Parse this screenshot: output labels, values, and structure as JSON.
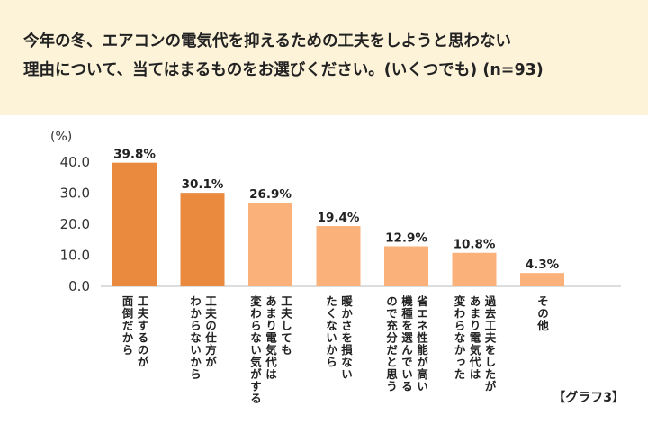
{
  "header": {
    "title_lines": [
      "今年の冬、エアコンの電気代を抑えるための工夫をしようと思わない",
      "理由について、当てはまるものをお選びください。(いくつでも) (n=93)"
    ]
  },
  "badge": "【グラフ3】",
  "colors": {
    "dark_bar": "#e98a3f",
    "light_bar": "#fbb27a",
    "header_bg": "#fdf3d9"
  },
  "chart_data": {
    "type": "bar",
    "unit": "(%)",
    "ylim": [
      0,
      40
    ],
    "yticks": [
      "0.0",
      "10.0",
      "20.0",
      "30.0",
      "40.0"
    ],
    "categories": [
      "工夫するのが\n面倒だから",
      "工夫の仕方が\nわからないから",
      "工夫しても\nあまり電気代は\n変わらない気がする",
      "暖かさを損ない\nたくないから",
      "省エネ性能が高い\n機種を選んでいる\nので充分だと思う",
      "過去工夫をしたが\nあまり電気代は\n変わらなかった",
      "その他"
    ],
    "values": [
      39.8,
      30.1,
      26.9,
      19.4,
      12.9,
      10.8,
      4.3
    ],
    "value_labels": [
      "39.8%",
      "30.1%",
      "26.9%",
      "19.4%",
      "12.9%",
      "10.8%",
      "4.3%"
    ],
    "highlight": [
      true,
      true,
      false,
      false,
      false,
      false,
      false
    ]
  }
}
